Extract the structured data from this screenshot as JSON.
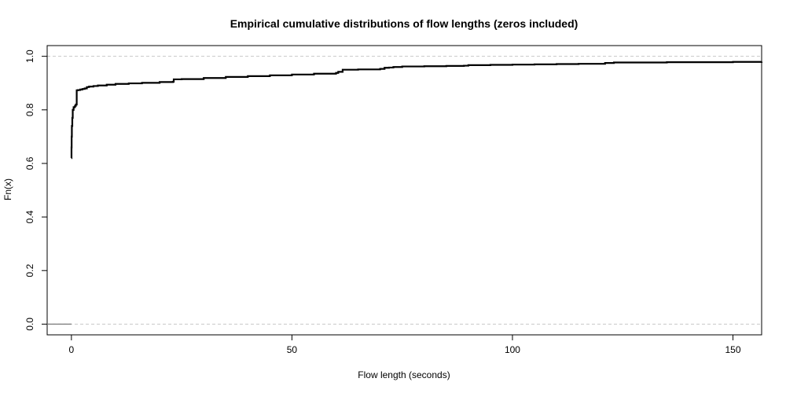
{
  "chart_data": {
    "type": "line",
    "title": "Empirical cumulative distributions of flow lengths (zeros included)",
    "xlabel": "Flow length (seconds)",
    "ylabel": "Fn(x)",
    "xlim": [
      -5.5,
      156.5
    ],
    "ylim": [
      -0.04,
      1.04
    ],
    "x_ticks": [
      0,
      50,
      100,
      150
    ],
    "x_tick_labels": [
      "0",
      "50",
      "100",
      "150"
    ],
    "y_ticks": [
      0.0,
      0.2,
      0.4,
      0.6,
      0.8,
      1.0
    ],
    "y_tick_labels": [
      "0.0",
      "0.2",
      "0.4",
      "0.6",
      "0.8",
      "1.0"
    ],
    "reference_lines": [
      0,
      1
    ],
    "grid": false,
    "series": [
      {
        "values_x": [
          -5.5,
          0,
          0,
          0.02,
          0.05,
          0.1,
          0.2,
          0.3,
          0.5,
          0.8,
          1,
          1.2,
          1.5,
          2,
          2.5,
          3,
          3.5,
          4,
          5,
          6,
          8,
          10,
          13,
          16,
          20,
          23,
          23.2,
          25,
          30,
          35,
          40,
          45,
          50,
          55,
          60,
          60.5,
          61.5,
          65,
          70,
          71,
          72,
          73,
          75,
          80,
          85,
          89,
          90,
          95,
          100,
          105,
          110,
          115,
          119,
          121,
          123,
          130,
          135,
          140,
          145,
          150,
          156.5
        ],
        "values_y": [
          0.0,
          0.0,
          0.62,
          0.66,
          0.7,
          0.74,
          0.77,
          0.8,
          0.81,
          0.815,
          0.82,
          0.873,
          0.874,
          0.876,
          0.878,
          0.88,
          0.885,
          0.887,
          0.889,
          0.891,
          0.894,
          0.897,
          0.899,
          0.901,
          0.904,
          0.905,
          0.914,
          0.915,
          0.919,
          0.923,
          0.926,
          0.929,
          0.932,
          0.935,
          0.938,
          0.942,
          0.95,
          0.951,
          0.953,
          0.957,
          0.958,
          0.96,
          0.962,
          0.963,
          0.964,
          0.965,
          0.967,
          0.968,
          0.969,
          0.97,
          0.971,
          0.972,
          0.972,
          0.975,
          0.977,
          0.977,
          0.978,
          0.978,
          0.978,
          0.979,
          0.98
        ]
      }
    ]
  }
}
